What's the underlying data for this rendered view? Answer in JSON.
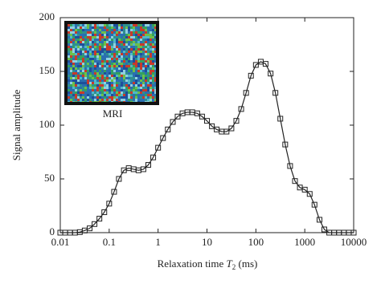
{
  "chart_data": {
    "type": "line",
    "xlabel_parts": [
      "Relaxation time ",
      "T",
      "2",
      " (ms)"
    ],
    "ylabel": "Signal amplitude",
    "inset_label": "MRI",
    "log_x": true,
    "x": [
      0.01,
      0.0126,
      0.0158,
      0.02,
      0.0251,
      0.0316,
      0.0398,
      0.0501,
      0.0631,
      0.0794,
      0.1,
      0.126,
      0.158,
      0.2,
      0.251,
      0.316,
      0.398,
      0.501,
      0.631,
      0.794,
      1,
      1.26,
      1.58,
      2,
      2.51,
      3.16,
      3.98,
      5.01,
      6.31,
      7.94,
      10,
      12.6,
      15.8,
      20,
      25.1,
      31.6,
      39.8,
      50.1,
      63.1,
      79.4,
      100,
      126,
      158,
      200,
      251,
      316,
      398,
      501,
      631,
      794,
      1000,
      1260,
      1580,
      2000,
      2510,
      3160,
      3980,
      5010,
      6310,
      7940,
      10000
    ],
    "series": [
      {
        "color": "#222222",
        "values": [
          0,
          0,
          0,
          0,
          0.5,
          2,
          4,
          8,
          13,
          19,
          27,
          38,
          50,
          58,
          60,
          59,
          58,
          59,
          63,
          70,
          79,
          88,
          96,
          103,
          108,
          111,
          112,
          112,
          111,
          108,
          104,
          99,
          96,
          94,
          94,
          97,
          104,
          115,
          130,
          146,
          156,
          159,
          157,
          148,
          130,
          106,
          82,
          62,
          48,
          42,
          40,
          36,
          26,
          12,
          3,
          0,
          0,
          0,
          0,
          0,
          0
        ]
      }
    ],
    "xlim": [
      0.01,
      10000
    ],
    "xticks": [
      0.01,
      0.1,
      1,
      10,
      100,
      1000,
      10000
    ],
    "ylim": [
      0,
      200
    ],
    "yticks": [
      0,
      50,
      100,
      150,
      200
    ]
  }
}
